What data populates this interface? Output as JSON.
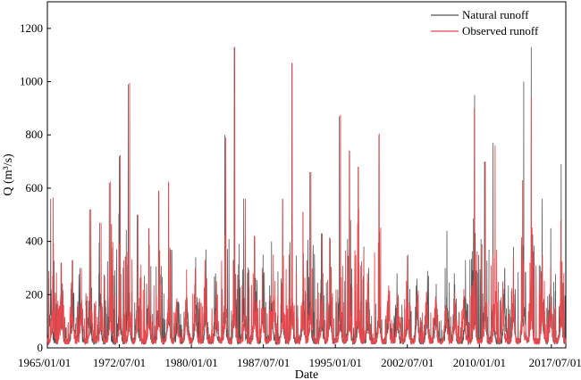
{
  "chart_data": {
    "type": "line",
    "title": "",
    "xlabel": "Date",
    "ylabel": "Q (m³/s)",
    "xlim": [
      "1965/01/01",
      "2019/01/01"
    ],
    "ylim": [
      0,
      1300
    ],
    "x_ticks": [
      "1965/01/01",
      "1972/07/01",
      "1980/01/01",
      "1987/07/01",
      "1995/01/01",
      "2002/07/01",
      "2010/01/01",
      "2017/07/01"
    ],
    "y_ticks": [
      0,
      200,
      400,
      600,
      800,
      1000,
      1200
    ],
    "grid": false,
    "legend": {
      "placement": "top-right",
      "entries": [
        "Natural runoff",
        "Observed runoff"
      ]
    },
    "series": [
      {
        "name": "Natural runoff",
        "color": "#555555",
        "x": [
          "1965/01/01",
          "1966/01/01",
          "1967/01/01",
          "1968/01/01",
          "1969/01/01",
          "1970/01/01",
          "1971/01/01",
          "1972/01/01",
          "1973/01/01",
          "1974/01/01",
          "1975/01/01",
          "1976/01/01",
          "1977/01/01",
          "1978/01/01",
          "1979/01/01",
          "1980/01/01",
          "1981/01/01",
          "1982/01/01",
          "1983/01/01",
          "1984/01/01",
          "1985/01/01",
          "1986/01/01",
          "1987/01/01",
          "1988/01/01",
          "1989/01/01",
          "1990/01/01",
          "1991/01/01",
          "1992/01/01",
          "1993/01/01",
          "1994/01/01",
          "1995/01/01",
          "1996/01/01",
          "1997/01/01",
          "1998/01/01",
          "1999/01/01",
          "2000/01/01",
          "2001/01/01",
          "2002/01/01",
          "2003/01/01",
          "2004/01/01",
          "2005/01/01",
          "2006/01/01",
          "2007/01/01",
          "2008/01/01",
          "2009/01/01",
          "2010/01/01",
          "2011/01/01",
          "2012/01/01",
          "2013/01/01",
          "2014/01/01",
          "2015/01/01",
          "2016/01/01",
          "2017/01/01",
          "2018/01/01"
        ],
        "values": [
          560,
          320,
          330,
          300,
          520,
          470,
          620,
          720,
          990,
          500,
          450,
          590,
          620,
          170,
          200,
          340,
          370,
          280,
          800,
          1130,
          560,
          420,
          350,
          400,
          560,
          1070,
          510,
          660,
          430,
          415,
          870,
          740,
          680,
          300,
          800,
          210,
          280,
          350,
          260,
          290,
          240,
          440,
          280,
          330,
          950,
          700,
          770,
          300,
          380,
          1000,
          1130,
          560,
          450,
          690
        ]
      },
      {
        "name": "Observed runoff",
        "color": "#e8474c",
        "x": [
          "1965/01/01",
          "1966/01/01",
          "1967/01/01",
          "1968/01/01",
          "1969/01/01",
          "1970/01/01",
          "1971/01/01",
          "1972/01/01",
          "1973/01/01",
          "1974/01/01",
          "1975/01/01",
          "1976/01/01",
          "1977/01/01",
          "1978/01/01",
          "1979/01/01",
          "1980/01/01",
          "1981/01/01",
          "1982/01/01",
          "1983/01/01",
          "1984/01/01",
          "1985/01/01",
          "1986/01/01",
          "1987/01/01",
          "1988/01/01",
          "1989/01/01",
          "1990/01/01",
          "1991/01/01",
          "1992/01/01",
          "1993/01/01",
          "1994/01/01",
          "1995/01/01",
          "1996/01/01",
          "1997/01/01",
          "1998/01/01",
          "1999/01/01",
          "2000/01/01",
          "2001/01/01",
          "2002/01/01",
          "2003/01/01",
          "2004/01/01",
          "2005/01/01",
          "2006/01/01",
          "2007/01/01",
          "2008/01/01",
          "2009/01/01",
          "2010/01/01",
          "2011/01/01",
          "2012/01/01",
          "2013/01/01",
          "2014/01/01",
          "2015/01/01",
          "2016/01/01",
          "2017/01/01",
          "2018/01/01"
        ],
        "values": [
          565,
          320,
          330,
          300,
          520,
          470,
          625,
          725,
          995,
          500,
          450,
          590,
          625,
          170,
          190,
          300,
          330,
          250,
          790,
          1130,
          560,
          420,
          300,
          350,
          560,
          1070,
          510,
          660,
          430,
          410,
          875,
          740,
          680,
          280,
          805,
          200,
          200,
          345,
          200,
          210,
          180,
          160,
          180,
          220,
          900,
          700,
          760,
          250,
          340,
          630,
          940,
          350,
          300,
          480
        ]
      }
    ]
  }
}
